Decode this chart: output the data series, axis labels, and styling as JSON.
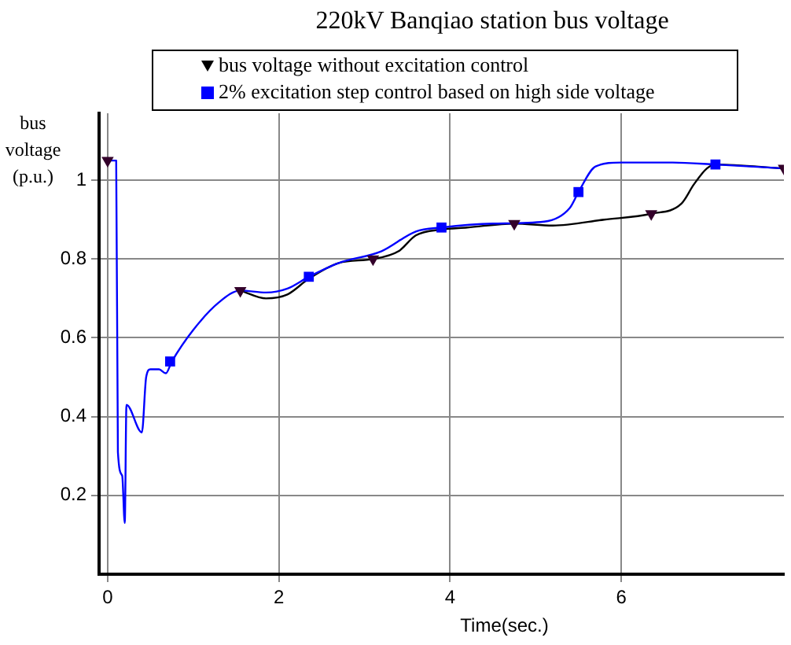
{
  "chart_data": {
    "type": "line",
    "title": "220kV Banqiao station bus voltage",
    "xlabel": "Time(sec.)",
    "ylabel": "bus voltage (p.u.)",
    "xlim": [
      -0.1,
      7.9
    ],
    "xticks": [
      0,
      2,
      4,
      6
    ],
    "ylim": [
      0,
      1.17
    ],
    "yticks": [
      0.2,
      0.4,
      0.6,
      0.8,
      1
    ],
    "grid": true,
    "legend": "top",
    "line_style": "solid",
    "series": [
      {
        "name": "bus voltage without excitation control",
        "color": "#000000",
        "marker": "none",
        "x": [
          1.55,
          1.85,
          2.1,
          2.35,
          2.7,
          3.1,
          3.4,
          3.6,
          3.9,
          4.2,
          4.75,
          5.2,
          5.8,
          6.35,
          6.7,
          6.85,
          7.0,
          7.1,
          7.9
        ],
        "values": [
          0.72,
          0.7,
          0.71,
          0.75,
          0.79,
          0.8,
          0.82,
          0.86,
          0.875,
          0.88,
          0.89,
          0.885,
          0.9,
          0.915,
          0.94,
          0.99,
          1.03,
          1.04,
          1.03
        ]
      },
      {
        "name": "2% excitation step control based on high side voltage",
        "color": "#0000ff",
        "marker": "none",
        "x": [
          0,
          0.1,
          0.12,
          0.17,
          0.2,
          0.22,
          0.4,
          0.45,
          0.5,
          0.6,
          0.68,
          0.75,
          1.0,
          1.3,
          1.55,
          1.85,
          2.1,
          2.35,
          2.7,
          3.2,
          3.6,
          3.9,
          4.5,
          5.1,
          5.4,
          5.5,
          5.7,
          6.0,
          6.6,
          7.1,
          7.9
        ],
        "values": [
          1.05,
          1.05,
          0.31,
          0.25,
          0.13,
          0.43,
          0.36,
          0.5,
          0.52,
          0.52,
          0.51,
          0.54,
          0.62,
          0.69,
          0.72,
          0.715,
          0.725,
          0.755,
          0.79,
          0.82,
          0.87,
          0.88,
          0.89,
          0.895,
          0.93,
          0.97,
          1.035,
          1.045,
          1.045,
          1.04,
          1.03
        ]
      },
      {
        "type": "scatter",
        "color": "#33002a",
        "marker": "triangle",
        "x": [
          0,
          1.55,
          3.1,
          4.75,
          6.35,
          7.9
        ],
        "values": [
          1.05,
          0.72,
          0.8,
          0.89,
          0.915,
          1.03
        ]
      },
      {
        "type": "scatter",
        "color": "#0000ff",
        "marker": "square",
        "x": [
          0.73,
          2.35,
          3.9,
          5.5,
          7.1
        ],
        "values": [
          0.54,
          0.755,
          0.88,
          0.97,
          1.04
        ]
      }
    ]
  }
}
